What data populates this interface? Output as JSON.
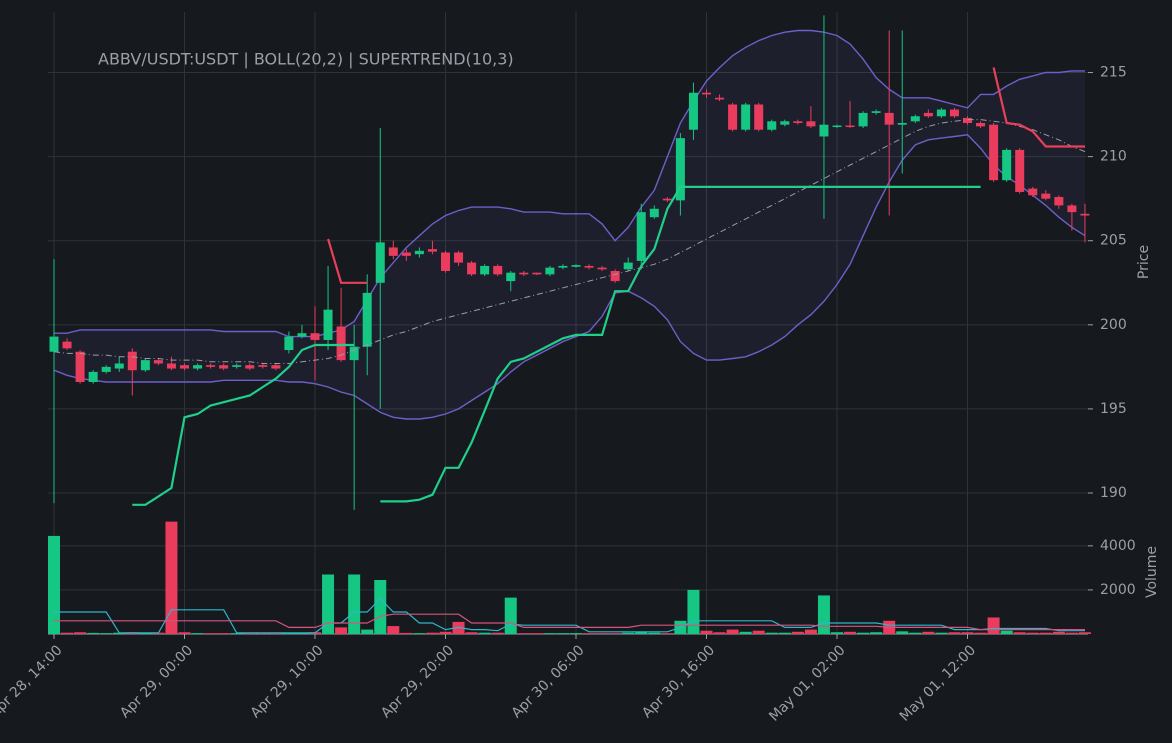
{
  "chart_data": [
    {
      "type": "candlestick",
      "title": "ABBV/USDT:USDT | BOLL(20,2) | SUPERTREND(10,3)",
      "ylabel": "Price",
      "categories": [
        "Apr 28, 14:00",
        null,
        null,
        null,
        null,
        null,
        null,
        null,
        null,
        null,
        "Apr 29, 00:00",
        null,
        null,
        null,
        null,
        null,
        null,
        null,
        null,
        null,
        "Apr 29, 10:00",
        null,
        null,
        null,
        null,
        null,
        null,
        null,
        null,
        null,
        "Apr 29, 20:00",
        null,
        null,
        null,
        null,
        null,
        null,
        null,
        null,
        null,
        "Apr 30, 06:00",
        null,
        null,
        null,
        null,
        null,
        null,
        null,
        null,
        null,
        "Apr 30, 16:00",
        null,
        null,
        null,
        null,
        null,
        null,
        null,
        null,
        null,
        "May 01, 02:00",
        null,
        null,
        null,
        null,
        null,
        null,
        null,
        null,
        null,
        "May 01, 12:00",
        null,
        null,
        null,
        null,
        null,
        null,
        null,
        null,
        null
      ],
      "open": [
        198.4,
        199.0,
        198.4,
        196.6,
        197.2,
        197.4,
        198.4,
        197.3,
        197.9,
        197.7,
        197.6,
        197.4,
        197.6,
        197.6,
        197.5,
        197.6,
        197.6,
        197.6,
        198.5,
        199.3,
        199.5,
        199.1,
        199.9,
        197.9,
        198.7,
        202.5,
        204.6,
        204.3,
        204.2,
        204.5,
        204.3,
        204.3,
        203.7,
        203.0,
        203.5,
        202.6,
        203.1,
        203.1,
        203.0,
        203.4,
        203.45,
        203.5,
        203.4,
        203.2,
        203.3,
        203.8,
        206.4,
        207.5,
        207.4,
        211.6,
        213.8,
        213.5,
        213.1,
        211.6,
        213.1,
        211.6,
        211.9,
        212.1,
        212.1,
        211.2,
        211.8,
        211.85,
        211.8,
        212.6,
        212.6,
        211.9,
        212.1,
        212.6,
        212.4,
        212.8,
        212.3,
        212.0,
        211.9,
        208.6,
        210.4,
        208.1,
        207.8,
        207.6,
        207.1,
        206.6
      ],
      "high": [
        203.9,
        199.2,
        198.5,
        197.3,
        197.6,
        198.1,
        198.6,
        198.0,
        198.0,
        198.1,
        197.7,
        197.7,
        197.7,
        197.7,
        197.7,
        197.7,
        197.7,
        197.7,
        199.6,
        200.0,
        201.1,
        203.5,
        202.2,
        200.0,
        203.0,
        211.7,
        205.0,
        204.5,
        204.6,
        205.0,
        204.4,
        204.4,
        203.8,
        203.6,
        203.6,
        203.2,
        203.2,
        203.1,
        203.5,
        203.6,
        203.6,
        203.6,
        203.5,
        203.3,
        204.0,
        207.2,
        207.1,
        207.6,
        211.4,
        214.4,
        214.0,
        213.7,
        213.2,
        213.2,
        213.2,
        212.2,
        212.2,
        212.2,
        213.0,
        218.4,
        211.9,
        213.3,
        212.7,
        212.8,
        217.5,
        217.5,
        212.5,
        212.8,
        212.9,
        212.9,
        212.4,
        212.1,
        212.0,
        210.5,
        210.5,
        208.2,
        208.0,
        207.7,
        207.2,
        207.2
      ],
      "low": [
        189.4,
        198.5,
        196.5,
        196.5,
        197.1,
        197.2,
        195.8,
        197.2,
        197.6,
        197.3,
        197.3,
        197.3,
        197.4,
        197.3,
        197.4,
        197.3,
        197.4,
        197.3,
        198.3,
        199.2,
        196.7,
        198.5,
        197.8,
        189.0,
        197.0,
        195.0,
        203.9,
        203.8,
        204.0,
        204.2,
        203.1,
        203.5,
        202.9,
        202.9,
        202.9,
        202.0,
        202.9,
        202.95,
        202.9,
        203.3,
        203.4,
        203.3,
        203.2,
        202.5,
        203.2,
        203.3,
        206.3,
        207.3,
        206.5,
        211.0,
        213.5,
        213.3,
        211.5,
        211.5,
        211.5,
        211.5,
        211.8,
        211.9,
        211.7,
        206.3,
        211.7,
        211.7,
        211.7,
        212.5,
        206.5,
        209.0,
        212.0,
        212.3,
        212.3,
        212.3,
        211.9,
        211.7,
        208.5,
        208.5,
        207.8,
        207.6,
        207.4,
        206.9,
        205.6,
        204.9
      ],
      "close": [
        199.3,
        198.6,
        196.6,
        197.2,
        197.5,
        197.7,
        197.3,
        197.9,
        197.7,
        197.4,
        197.4,
        197.6,
        197.5,
        197.4,
        197.6,
        197.4,
        197.5,
        197.4,
        199.3,
        199.5,
        199.1,
        200.9,
        197.9,
        198.7,
        201.9,
        204.9,
        204.1,
        204.1,
        204.4,
        204.35,
        203.2,
        203.7,
        203.0,
        203.5,
        203.0,
        203.1,
        203.0,
        203.0,
        203.4,
        203.5,
        203.55,
        203.4,
        203.3,
        202.6,
        203.7,
        206.7,
        206.9,
        207.4,
        211.1,
        213.8,
        213.7,
        213.4,
        211.6,
        213.1,
        211.6,
        212.1,
        212.1,
        212.0,
        211.8,
        211.9,
        211.85,
        211.8,
        212.6,
        212.7,
        211.9,
        212.0,
        212.4,
        212.4,
        212.8,
        212.4,
        212.0,
        211.8,
        208.6,
        210.4,
        207.9,
        207.7,
        207.5,
        207.1,
        206.7,
        206.5
      ],
      "up_color": "#16c784",
      "down_color": "#ea3d5e",
      "overlays": [
        {
          "kind": "band",
          "color": "#6e5fc9",
          "values": [
            199.5,
            199.5,
            199.7,
            199.7,
            199.7,
            199.7,
            199.7,
            199.7,
            199.7,
            199.7,
            199.7,
            199.7,
            199.7,
            199.6,
            199.6,
            199.6,
            199.6,
            199.6,
            199.3,
            199.3,
            199.3,
            199.5,
            199.7,
            200.2,
            201.5,
            202.8,
            203.7,
            204.6,
            205.3,
            206.0,
            206.5,
            206.8,
            207.0,
            207.0,
            207.0,
            206.9,
            206.7,
            206.7,
            206.7,
            206.6,
            206.6,
            206.6,
            206.0,
            205.0,
            205.8,
            207.0,
            208.0,
            210.0,
            212.0,
            213.3,
            214.5,
            215.3,
            216.0,
            216.5,
            216.9,
            217.2,
            217.4,
            217.5,
            217.5,
            217.4,
            217.2,
            216.7,
            215.8,
            214.7,
            214.0,
            213.5,
            213.5,
            213.5,
            213.3,
            213.1,
            212.9,
            213.7,
            213.7,
            214.2,
            214.6,
            214.8,
            215.0,
            215.0,
            215.1,
            215.1
          ],
          "lower": [
            197.3,
            197.0,
            196.8,
            196.7,
            196.6,
            196.6,
            196.6,
            196.6,
            196.6,
            196.6,
            196.6,
            196.6,
            196.6,
            196.7,
            196.7,
            196.7,
            196.7,
            196.7,
            196.6,
            196.6,
            196.5,
            196.3,
            196.0,
            195.8,
            195.3,
            194.8,
            194.5,
            194.4,
            194.4,
            194.5,
            194.7,
            195.0,
            195.5,
            196.0,
            196.5,
            197.2,
            197.8,
            198.2,
            198.6,
            199.0,
            199.3,
            199.6,
            200.5,
            201.9,
            202.0,
            201.6,
            201.1,
            200.3,
            199.0,
            198.3,
            197.9,
            197.9,
            198.0,
            198.1,
            198.4,
            198.8,
            199.3,
            200.0,
            200.6,
            201.4,
            202.4,
            203.6,
            205.3,
            207.0,
            208.5,
            209.8,
            210.7,
            211.0,
            211.1,
            211.2,
            211.3,
            210.5,
            209.5,
            208.8,
            208.3,
            207.7,
            207.1,
            206.4,
            205.8,
            205.3
          ]
        },
        {
          "kind": "line",
          "color": "#9a9ca3",
          "dash": "6 3 1 3",
          "values": [
            198.4,
            198.3,
            198.3,
            198.2,
            198.2,
            198.1,
            198.1,
            198.0,
            198.0,
            197.9,
            197.9,
            197.9,
            197.8,
            197.8,
            197.8,
            197.8,
            197.7,
            197.7,
            197.7,
            197.8,
            197.9,
            198.0,
            198.2,
            198.5,
            198.8,
            199.1,
            199.4,
            199.6,
            199.9,
            200.2,
            200.4,
            200.6,
            200.8,
            201.0,
            201.2,
            201.4,
            201.6,
            201.8,
            202.0,
            202.2,
            202.4,
            202.6,
            202.8,
            203.0,
            203.2,
            203.4,
            203.6,
            203.9,
            204.3,
            204.7,
            205.1,
            205.5,
            205.9,
            206.3,
            206.7,
            207.1,
            207.5,
            207.9,
            208.3,
            208.7,
            209.1,
            209.5,
            209.9,
            210.3,
            210.7,
            211.1,
            211.5,
            211.8,
            212.0,
            212.1,
            212.2,
            212.2,
            212.1,
            212.0,
            211.8,
            211.6,
            211.3,
            211.0,
            210.6,
            210.3
          ]
        },
        {
          "kind": "line",
          "color": "#1fcf8a",
          "width": 2.2,
          "values": [
            null,
            null,
            null,
            null,
            null,
            null,
            189.3,
            189.3,
            189.8,
            190.3,
            194.5,
            194.7,
            195.2,
            195.4,
            195.6,
            195.8,
            196.3,
            196.8,
            197.5,
            198.5,
            198.8,
            198.8,
            198.8,
            198.8,
            null,
            189.5,
            189.5,
            189.5,
            189.6,
            189.9,
            191.5,
            191.5,
            193.0,
            194.9,
            196.8,
            197.8,
            198.0,
            198.4,
            198.8,
            199.2,
            199.4,
            199.4,
            199.4,
            202.0,
            202.0,
            203.5,
            204.5,
            206.9,
            208.2,
            208.2,
            208.2,
            208.2,
            208.2,
            208.2,
            208.2,
            208.2,
            208.2,
            208.2,
            208.2,
            208.2,
            208.2,
            208.2,
            208.2,
            208.2,
            208.2,
            208.2,
            208.2,
            208.2,
            208.2,
            208.2,
            208.2,
            208.2,
            null,
            null,
            null,
            null,
            null,
            null,
            null,
            null
          ]
        },
        {
          "kind": "line",
          "color": "#e8405a",
          "width": 2.2,
          "values": [
            null,
            null,
            null,
            null,
            null,
            null,
            null,
            null,
            null,
            null,
            null,
            null,
            null,
            null,
            null,
            null,
            null,
            null,
            null,
            null,
            null,
            205.1,
            202.5,
            202.5,
            202.5,
            null,
            null,
            null,
            null,
            null,
            null,
            null,
            null,
            null,
            null,
            null,
            null,
            null,
            null,
            null,
            null,
            null,
            null,
            null,
            null,
            null,
            null,
            null,
            null,
            null,
            null,
            null,
            null,
            null,
            null,
            null,
            null,
            null,
            null,
            null,
            null,
            null,
            null,
            null,
            null,
            null,
            null,
            null,
            null,
            null,
            null,
            null,
            215.3,
            212.0,
            211.9,
            211.5,
            210.6,
            210.6,
            210.6,
            210.6
          ]
        }
      ],
      "ylim": [
        187.8,
        218.6
      ],
      "yticks": [
        190,
        195,
        200,
        205,
        210,
        215
      ],
      "grid": true
    },
    {
      "type": "bar",
      "ylabel": "Volume",
      "values": [
        4450,
        60,
        80,
        50,
        40,
        60,
        80,
        50,
        60,
        5100,
        80,
        40,
        40,
        40,
        40,
        40,
        40,
        40,
        60,
        40,
        80,
        2700,
        300,
        2700,
        200,
        2450,
        360,
        50,
        40,
        60,
        100,
        550,
        80,
        60,
        60,
        1650,
        40,
        40,
        40,
        40,
        40,
        40,
        40,
        40,
        60,
        100,
        60,
        40,
        600,
        2000,
        150,
        80,
        200,
        100,
        150,
        60,
        60,
        100,
        200,
        1750,
        80,
        100,
        60,
        80,
        600,
        120,
        60,
        100,
        60,
        80,
        80,
        60,
        750,
        150,
        80,
        60,
        60,
        100,
        60,
        80
      ],
      "lines": [
        {
          "color": "#2bb8cc",
          "values": [
            1000,
            1000,
            1000,
            1000,
            1000,
            50,
            50,
            50,
            50,
            1100,
            1100,
            1100,
            1100,
            1100,
            50,
            50,
            50,
            50,
            50,
            50,
            50,
            500,
            500,
            1000,
            1000,
            1600,
            1000,
            1000,
            500,
            500,
            200,
            300,
            200,
            200,
            150,
            450,
            400,
            400,
            400,
            400,
            400,
            100,
            100,
            100,
            100,
            100,
            100,
            100,
            300,
            600,
            600,
            600,
            600,
            600,
            600,
            600,
            300,
            300,
            300,
            500,
            500,
            500,
            500,
            500,
            400,
            400,
            400,
            400,
            400,
            200,
            200,
            200,
            250,
            250,
            250,
            250,
            250,
            150,
            150,
            150
          ]
        },
        {
          "color": "#d4557e",
          "values": [
            600,
            600,
            600,
            600,
            600,
            600,
            600,
            600,
            600,
            600,
            600,
            600,
            600,
            600,
            600,
            600,
            600,
            600,
            300,
            300,
            300,
            500,
            500,
            500,
            500,
            800,
            900,
            900,
            900,
            900,
            900,
            900,
            500,
            500,
            500,
            500,
            300,
            300,
            300,
            300,
            300,
            300,
            300,
            300,
            300,
            400,
            400,
            400,
            400,
            400,
            400,
            400,
            400,
            400,
            400,
            400,
            400,
            400,
            400,
            350,
            350,
            350,
            350,
            350,
            300,
            300,
            300,
            300,
            300,
            300,
            300,
            200,
            200,
            200,
            200,
            200,
            200,
            200,
            200,
            200
          ]
        }
      ],
      "ylim": [
        0,
        5400
      ],
      "yticks": [
        2000,
        4000
      ],
      "grid": true
    }
  ]
}
